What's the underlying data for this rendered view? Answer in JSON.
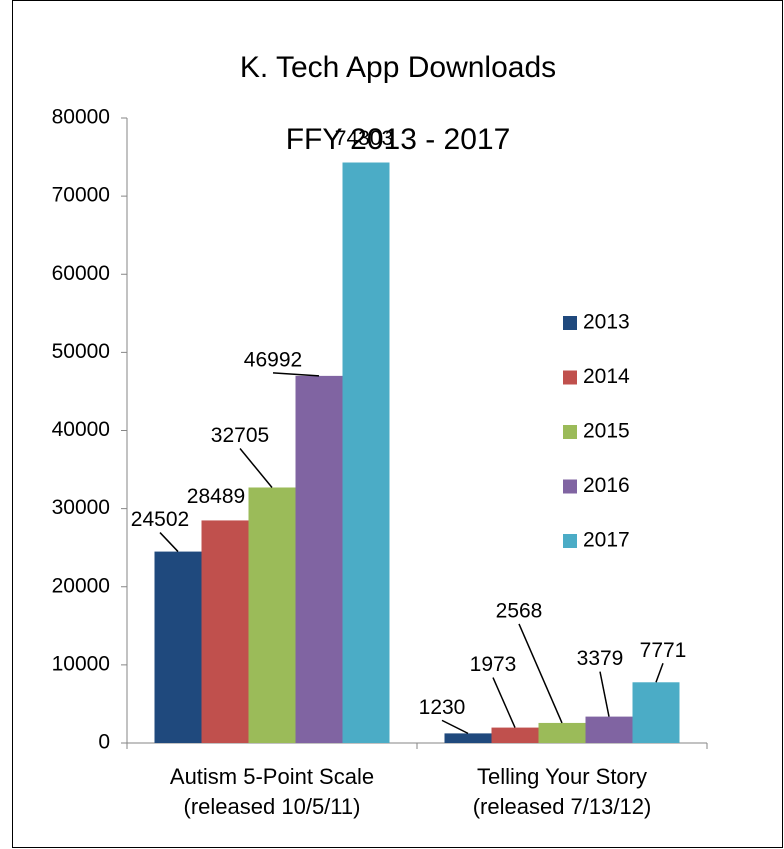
{
  "chart_data": {
    "type": "bar",
    "title": "K. Tech App Downloads",
    "subtitle": "FFY 2013 - 2017",
    "categories": [
      "Autism 5-Point Scale\n(released 10/5/11)",
      "Telling Your Story\n(released 7/13/12)"
    ],
    "series": [
      {
        "name": "2013",
        "color": "#1f497d",
        "values": [
          24502,
          1230
        ]
      },
      {
        "name": "2014",
        "color": "#c0504d",
        "values": [
          28489,
          1973
        ]
      },
      {
        "name": "2015",
        "color": "#9bbb59",
        "values": [
          32705,
          2568
        ]
      },
      {
        "name": "2016",
        "color": "#8064a2",
        "values": [
          46992,
          3379
        ]
      },
      {
        "name": "2017",
        "color": "#4bacc6",
        "values": [
          74303,
          7771
        ]
      }
    ],
    "ylim": [
      0,
      80000
    ],
    "yticks": [
      0,
      10000,
      20000,
      30000,
      40000,
      50000,
      60000,
      70000,
      80000
    ],
    "legend": "right"
  }
}
